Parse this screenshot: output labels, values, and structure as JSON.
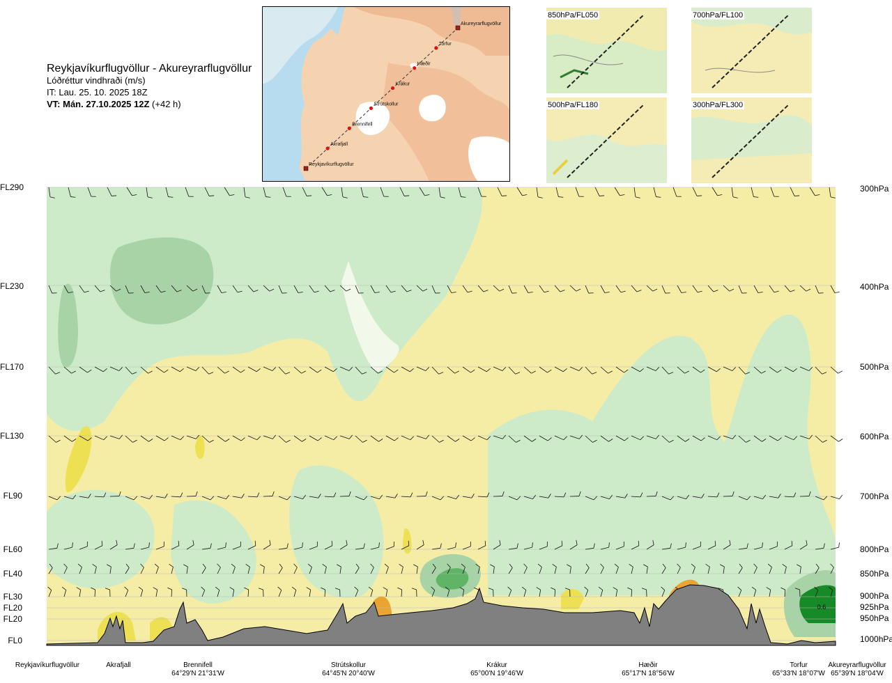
{
  "header": {
    "route_title": "Reykjavíkurflugvöllur - Akureyrarflugvöllur",
    "parameter": "Lóðréttur vindhraði (m/s)",
    "issue_time": "IT: Lau. 25. 10. 2025 18Z",
    "valid_time_bold": "VT: Mán. 27.10.2025 12Z",
    "valid_time_lead": "(+42 h)"
  },
  "route_map": {
    "waypoints": [
      "Akureyrarflugvöllur",
      "Torfur",
      "Hæðir",
      "Krákur",
      "Strútskollur",
      "Brennifell",
      "Akrafjall",
      "Reykjavíkurflugvöllur"
    ]
  },
  "mini_maps": [
    {
      "label": "850hPa/FL050"
    },
    {
      "label": "700hPa/FL100"
    },
    {
      "label": "500hPa/FL180"
    },
    {
      "label": "300hPa/FL300"
    }
  ],
  "chart_data": {
    "type": "heatmap",
    "xlabel": "",
    "ylabel": "",
    "levels": [
      {
        "fl": "FL290",
        "hpa": "300hPa",
        "pressure": 300
      },
      {
        "fl": "FL230",
        "hpa": "400hPa",
        "pressure": 400
      },
      {
        "fl": "FL170",
        "hpa": "500hPa",
        "pressure": 500
      },
      {
        "fl": "FL130",
        "hpa": "600hPa",
        "pressure": 600
      },
      {
        "fl": "FL90",
        "hpa": "700hPa",
        "pressure": 700
      },
      {
        "fl": "FL60",
        "hpa": "800hPa",
        "pressure": 800
      },
      {
        "fl": "FL40",
        "hpa": "850hPa",
        "pressure": 850
      },
      {
        "fl": "FL30",
        "hpa": "900hPa",
        "pressure": 900
      },
      {
        "fl": "FL20",
        "hpa": "925hPa",
        "pressure": 925
      },
      {
        "fl": "FL20",
        "hpa": "950hPa",
        "pressure": 950
      },
      {
        "fl": "FL0",
        "hpa": "1000hPa",
        "pressure": 1000
      }
    ],
    "x_positions": [
      {
        "name": "Reykjavíkurflugvöllur",
        "coord": "",
        "dist": 0.0
      },
      {
        "name": "Akrafjall",
        "coord": "",
        "dist": 0.09
      },
      {
        "name": "Brennifell",
        "coord": "64°29'N 21°31'W",
        "dist": 0.19
      },
      {
        "name": "Strútskollur",
        "coord": "64°45'N 20°40'W",
        "dist": 0.38
      },
      {
        "name": "Krákur",
        "coord": "65°00'N 19°46'W",
        "dist": 0.55
      },
      {
        "name": "Hæðir",
        "coord": "65°17'N 18°56'W",
        "dist": 0.73
      },
      {
        "name": "Torfur",
        "coord": "65°33'N 18°07'W",
        "dist": 0.925
      },
      {
        "name": "Akureyrarflugvöllur",
        "coord": "65°39'N 18°04'W",
        "dist": 1.0
      }
    ],
    "annotations": [
      "0.6"
    ],
    "colors": {
      "updraft_weak": "#f5eda6",
      "updraft_moderate": "#ede052",
      "updraft_strong": "#e9a530",
      "downdraft_weak": "#cdebc9",
      "downdraft_moderate": "#a8d3a6",
      "downdraft_strong": "#5fb466",
      "downdraft_extreme": "#178a28",
      "neutral": "#f2f9ea",
      "terrain": "#808080"
    },
    "grid": true
  }
}
